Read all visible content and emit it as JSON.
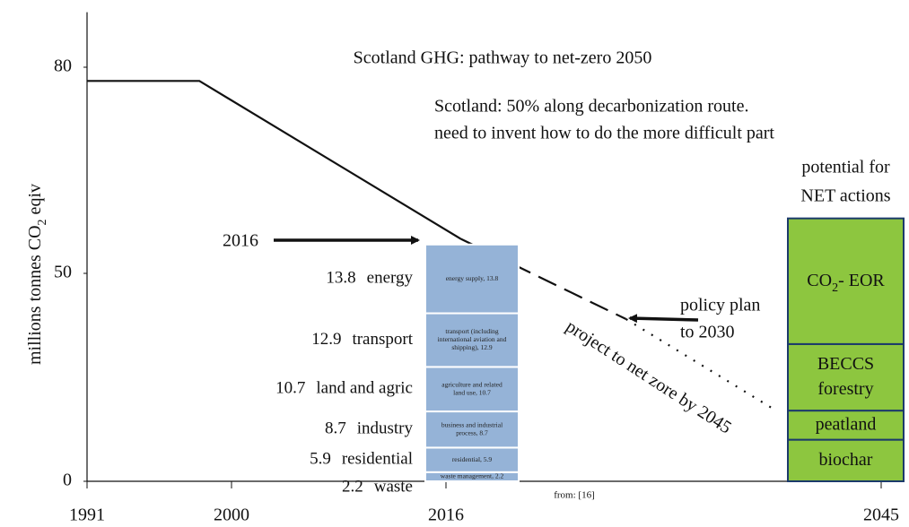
{
  "chart_data": {
    "type": "pathway",
    "title": "Scotland GHG: pathway to net-zero 2050",
    "notes": [
      "Scotland: 50% along decarbonization route.",
      "need to invent how to do the more difficult part"
    ],
    "y_label": [
      [
        "millions tonnes CO",
        "2",
        " eqiv"
      ]
    ],
    "xlim": [
      1991,
      2045
    ],
    "xticks": [
      1991,
      2000,
      2016,
      2045
    ],
    "ylim": [
      0,
      88
    ],
    "yticks": [
      0,
      50,
      80
    ],
    "lines": [
      {
        "style": "solid",
        "x": [
          1991,
          1998,
          2017
        ],
        "values": [
          78,
          78,
          55
        ]
      },
      {
        "style": "dashed",
        "x": [
          2017,
          2028
        ],
        "values": [
          55,
          39
        ]
      },
      {
        "style": "dotted",
        "x": [
          2028,
          2038
        ],
        "values": [
          39,
          17
        ]
      }
    ],
    "bar_2016": {
      "x": 2016,
      "color": "#95b3d7",
      "segments": [
        {
          "name": "waste",
          "value": 2.2,
          "inner": [
            "waste management, 2.2"
          ]
        },
        {
          "name": "residential",
          "value": 5.9,
          "inner": [
            "residential, 5.9"
          ]
        },
        {
          "name": "industry",
          "value": 8.7,
          "inner": [
            "business and industrial",
            "process, 8.7"
          ]
        },
        {
          "name": "land and agric",
          "value": 10.7,
          "inner": [
            "agriculture and related",
            "land use, 10.7"
          ]
        },
        {
          "name": "transport",
          "value": 12.9,
          "inner": [
            "transport (including",
            "international aviation and",
            "shipping), 12.9"
          ]
        },
        {
          "name": "energy",
          "value": 13.8,
          "inner": [
            "energy supply, 13.8"
          ]
        }
      ]
    },
    "net": {
      "title": [
        "potential for",
        "NET actions"
      ],
      "x": 2045,
      "color": "#8dc63f",
      "segments": [
        {
          "label": [
            [
              "biochar"
            ]
          ],
          "value": 10
        },
        {
          "label": [
            [
              "peatland"
            ]
          ],
          "value": 7
        },
        {
          "label": [
            [
              "BECCS"
            ],
            [
              "forestry"
            ]
          ],
          "value": 16
        },
        {
          "label": [
            [
              "CO",
              "2",
              "- EOR"
            ]
          ],
          "value": 25
        }
      ]
    },
    "annotations": {
      "year_arrow": "2016",
      "policy": [
        "policy plan",
        "to 2030"
      ],
      "projection": "project to net zore by 2045",
      "source": "from: [16]"
    }
  }
}
